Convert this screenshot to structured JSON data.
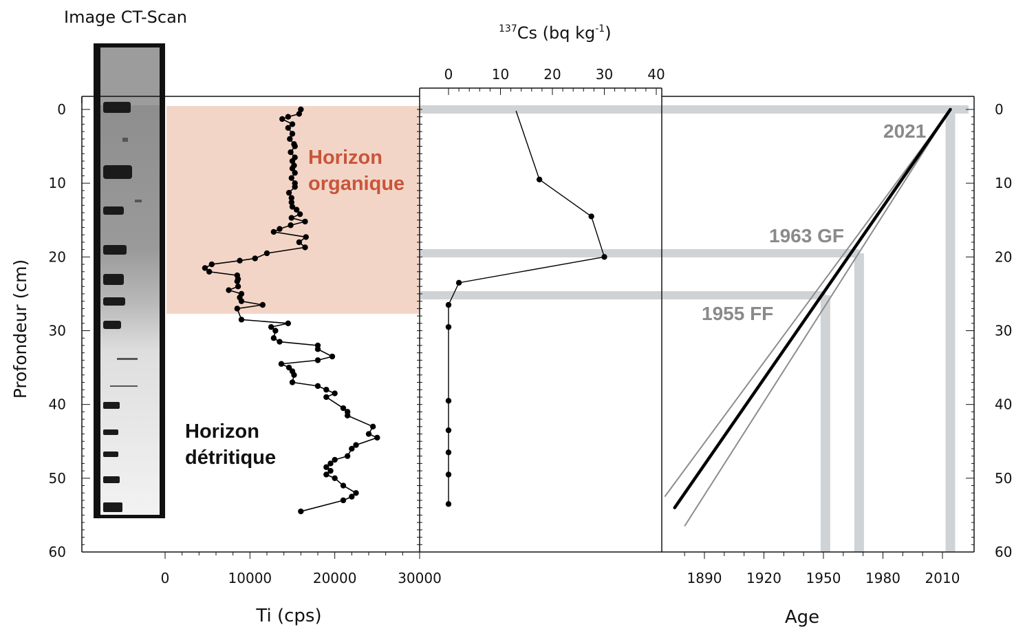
{
  "texts": {
    "ct_title": "Image CT-Scan",
    "cs_axis_label": "137Cs (bq kg-1)",
    "cs_label_sup1": "137",
    "cs_label_main": "Cs (bq kg",
    "cs_label_sup2": "-1",
    "cs_label_end": ")",
    "depth_label": "Profondeur (cm)",
    "ti_label": "Ti (cps)",
    "age_label": "Age",
    "horizon_org_line1": "Horizon",
    "horizon_org_line2": "organique",
    "horizon_det_line1": "Horizon",
    "horizon_det_line2": "détritique",
    "date_2021": "2021",
    "date_1963": "1963 GF",
    "date_1955": "1955 FF"
  },
  "colors": {
    "organic_band": "#f3d5c7",
    "organic_text": "#c8553a",
    "marker_band": "#d0d3d6",
    "date_text": "#8a8a8a",
    "series": "#000000"
  },
  "chart_data": [
    {
      "type": "line",
      "id": "ti",
      "xlabel": "Ti (cps)",
      "ylabel": "Profondeur (cm)",
      "xlim": [
        0,
        30000
      ],
      "ylim": [
        60,
        0
      ],
      "xticks": [
        0,
        10000,
        20000,
        30000
      ],
      "yticks": [
        0,
        10,
        20,
        30,
        40,
        50,
        60
      ],
      "annotations": [
        "Horizon organique",
        "Horizon détritique"
      ],
      "organic_horizon_depth": [
        0,
        27.7
      ],
      "series": [
        {
          "depth": [
            0,
            0.6,
            1.0,
            1.3,
            2.0,
            2.5,
            3.3,
            4.0,
            4.7,
            5.0,
            5.8,
            6.5,
            7.0,
            7.6,
            8.0,
            8.6,
            9.3,
            10.0,
            10.5,
            11.3,
            12.0,
            12.6,
            13.2,
            13.6,
            14.2,
            14.7,
            15.2,
            15.7,
            16.2,
            16.6,
            17.3,
            18.0,
            18.7,
            19.5,
            20.2,
            20.5,
            21.0,
            21.5,
            22.0,
            22.5,
            23.0,
            23.3,
            24.0,
            24.5,
            25.0,
            25.5,
            26.0,
            26.5,
            27.0,
            28.5,
            29.0,
            29.5,
            30.0,
            31.0,
            31.5,
            32.0,
            32.5,
            33.5,
            34.0,
            34.5,
            35.0,
            35.5,
            36.0,
            37.0,
            37.5,
            38.0,
            38.5,
            39.0,
            40.5,
            41.0,
            41.5,
            43.0,
            44.0,
            44.5,
            45.5,
            46.0,
            47.0,
            47.5,
            48.0,
            48.5,
            49.0,
            49.5,
            50.0,
            51.0,
            52.0,
            52.5,
            53.0,
            54.5
          ],
          "ti": [
            16000,
            15800,
            14500,
            13800,
            15000,
            14500,
            15000,
            14700,
            15200,
            15300,
            14800,
            15300,
            15000,
            15200,
            15000,
            15300,
            14900,
            15300,
            15300,
            14600,
            14900,
            14900,
            15000,
            15500,
            15900,
            14900,
            16500,
            14800,
            13500,
            12800,
            16600,
            15800,
            16500,
            12000,
            10600,
            8800,
            5500,
            4700,
            5200,
            8500,
            8600,
            8500,
            8600,
            7500,
            9000,
            8800,
            9000,
            11500,
            8500,
            9000,
            14500,
            12500,
            13000,
            12800,
            13500,
            18000,
            18000,
            19700,
            18000,
            13700,
            14600,
            15000,
            15200,
            15000,
            18000,
            19000,
            20000,
            19000,
            21000,
            21500,
            21500,
            24500,
            24000,
            25000,
            22500,
            22000,
            21500,
            20000,
            19500,
            19000,
            19500,
            19000,
            20000,
            21000,
            22500,
            22000,
            21000,
            16000
          ]
        }
      ]
    },
    {
      "type": "line",
      "id": "cs137",
      "xlabel": "137Cs (bq kg-1)",
      "xlim": [
        0,
        40
      ],
      "xticks": [
        0,
        10,
        20,
        30,
        40
      ],
      "xaxis_position": "top",
      "series": [
        {
          "depth": [
            0.2,
            9.5,
            14.5,
            20.0,
            23.5,
            26.5,
            29.5,
            39.5,
            43.5,
            46.5,
            49.5,
            53.5
          ],
          "cs137": [
            13,
            17.5,
            27.5,
            30,
            2,
            0,
            0,
            0,
            0,
            0,
            0,
            0
          ]
        }
      ]
    },
    {
      "type": "line",
      "id": "age",
      "xlabel": "Age",
      "xlim": [
        1870,
        2015
      ],
      "xticks": [
        1890,
        1920,
        1950,
        1980,
        2010
      ],
      "ylabel_right": "Profondeur (cm)",
      "yticks_right": [
        0,
        10,
        20,
        30,
        40,
        50,
        60
      ],
      "age_model": {
        "age": [
          2014,
          1875
        ],
        "depth": [
          0,
          54
        ]
      },
      "confidence_bounds": [
        {
          "age": [
            2014,
            1870
          ],
          "depth": [
            0,
            52.5
          ]
        },
        {
          "age": [
            2014,
            1880
          ],
          "depth": [
            0,
            56.5
          ]
        }
      ],
      "markers": [
        {
          "label": "2021",
          "depth": 0,
          "age": 2014
        },
        {
          "label": "1963 GF",
          "depth": 19.5,
          "age": 1968
        },
        {
          "label": "1955 FF",
          "depth": 25.2,
          "age": 1951
        }
      ]
    }
  ]
}
